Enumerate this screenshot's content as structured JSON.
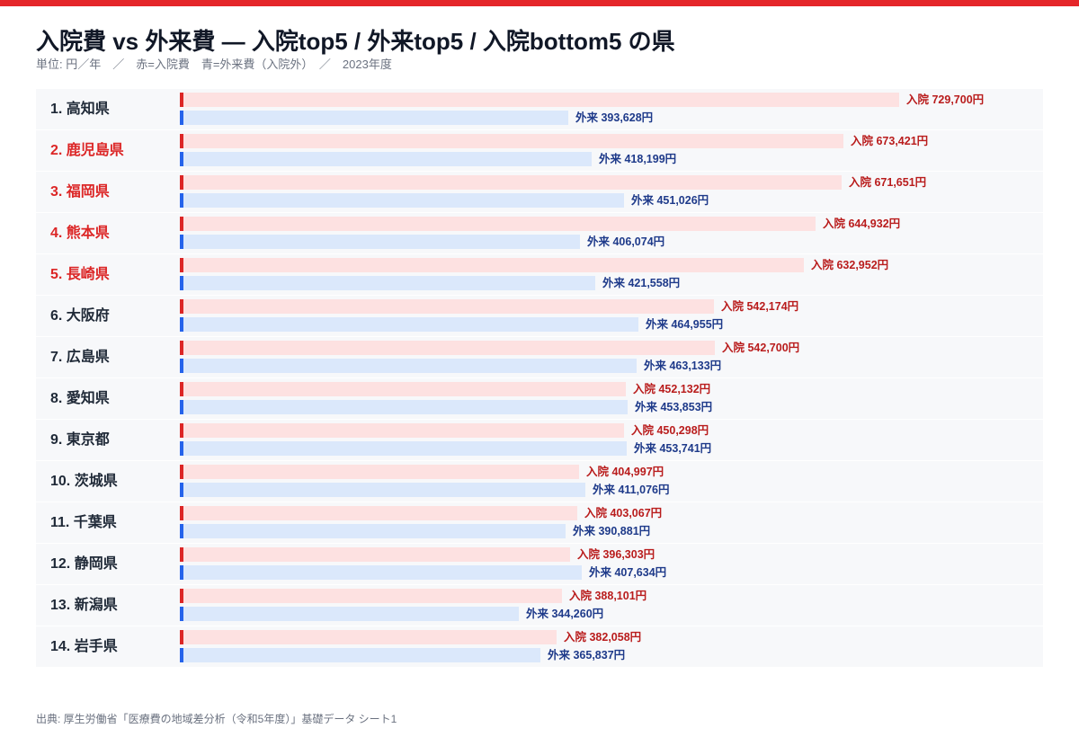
{
  "colors": {
    "accent": "#e5262a",
    "inpatient": "#dc2626",
    "outpatient": "#2563eb"
  },
  "header": {
    "title": "入院費 vs 外来費 — 入院top5 / 外来top5 / 入院bottom5 の県",
    "subtitle": "単位: 円／年　／　赤=入院費　青=外来費（入院外）　／　2023年度"
  },
  "source": "出典: 厚生労働省「医療費の地域差分析（令和5年度）」基礎データ シート1",
  "chart_data": {
    "type": "bar",
    "orientation": "horizontal",
    "categories": [
      "1. 高知県",
      "2. 鹿児島県",
      "3. 福岡県",
      "4. 熊本県",
      "5. 長崎県",
      "6. 大阪府",
      "7. 広島県",
      "8. 愛知県",
      "9. 東京都",
      "10. 茨城県",
      "11. 千葉県",
      "12. 静岡県",
      "13. 新潟県",
      "14. 岩手県"
    ],
    "highlighted": [
      false,
      true,
      true,
      true,
      true,
      false,
      false,
      false,
      false,
      false,
      false,
      false,
      false,
      false
    ],
    "series": [
      {
        "name": "入院",
        "color": "#dc2626",
        "values": [
          729700,
          673421,
          671651,
          644932,
          632952,
          542174,
          542700,
          452132,
          450298,
          404997,
          403067,
          396303,
          388101,
          382058
        ],
        "labels": [
          "入院 729,700円",
          "入院 673,421円",
          "入院 671,651円",
          "入院 644,932円",
          "入院 632,952円",
          "入院 542,174円",
          "入院 542,700円",
          "入院 452,132円",
          "入院 450,298円",
          "入院 404,997円",
          "入院 403,067円",
          "入院 396,303円",
          "入院 388,101円",
          "入院 382,058円"
        ]
      },
      {
        "name": "外来",
        "color": "#2563eb",
        "values": [
          393628,
          418199,
          451026,
          406074,
          421558,
          464955,
          463133,
          453853,
          453741,
          411076,
          390881,
          407634,
          344260,
          365837
        ],
        "labels": [
          "外来 393,628円",
          "外来 418,199円",
          "外来 451,026円",
          "外来 406,074円",
          "外来 421,558円",
          "外来 464,955円",
          "外来 463,133円",
          "外来 453,853円",
          "外来 453,741円",
          "外来 411,076円",
          "外来 390,881円",
          "外来 407,634円",
          "外来 344,260円",
          "外来 365,837円"
        ]
      }
    ],
    "xlim": [
      0,
      729700
    ],
    "xlabel": "",
    "ylabel": "",
    "grid": false,
    "legend": "none"
  }
}
